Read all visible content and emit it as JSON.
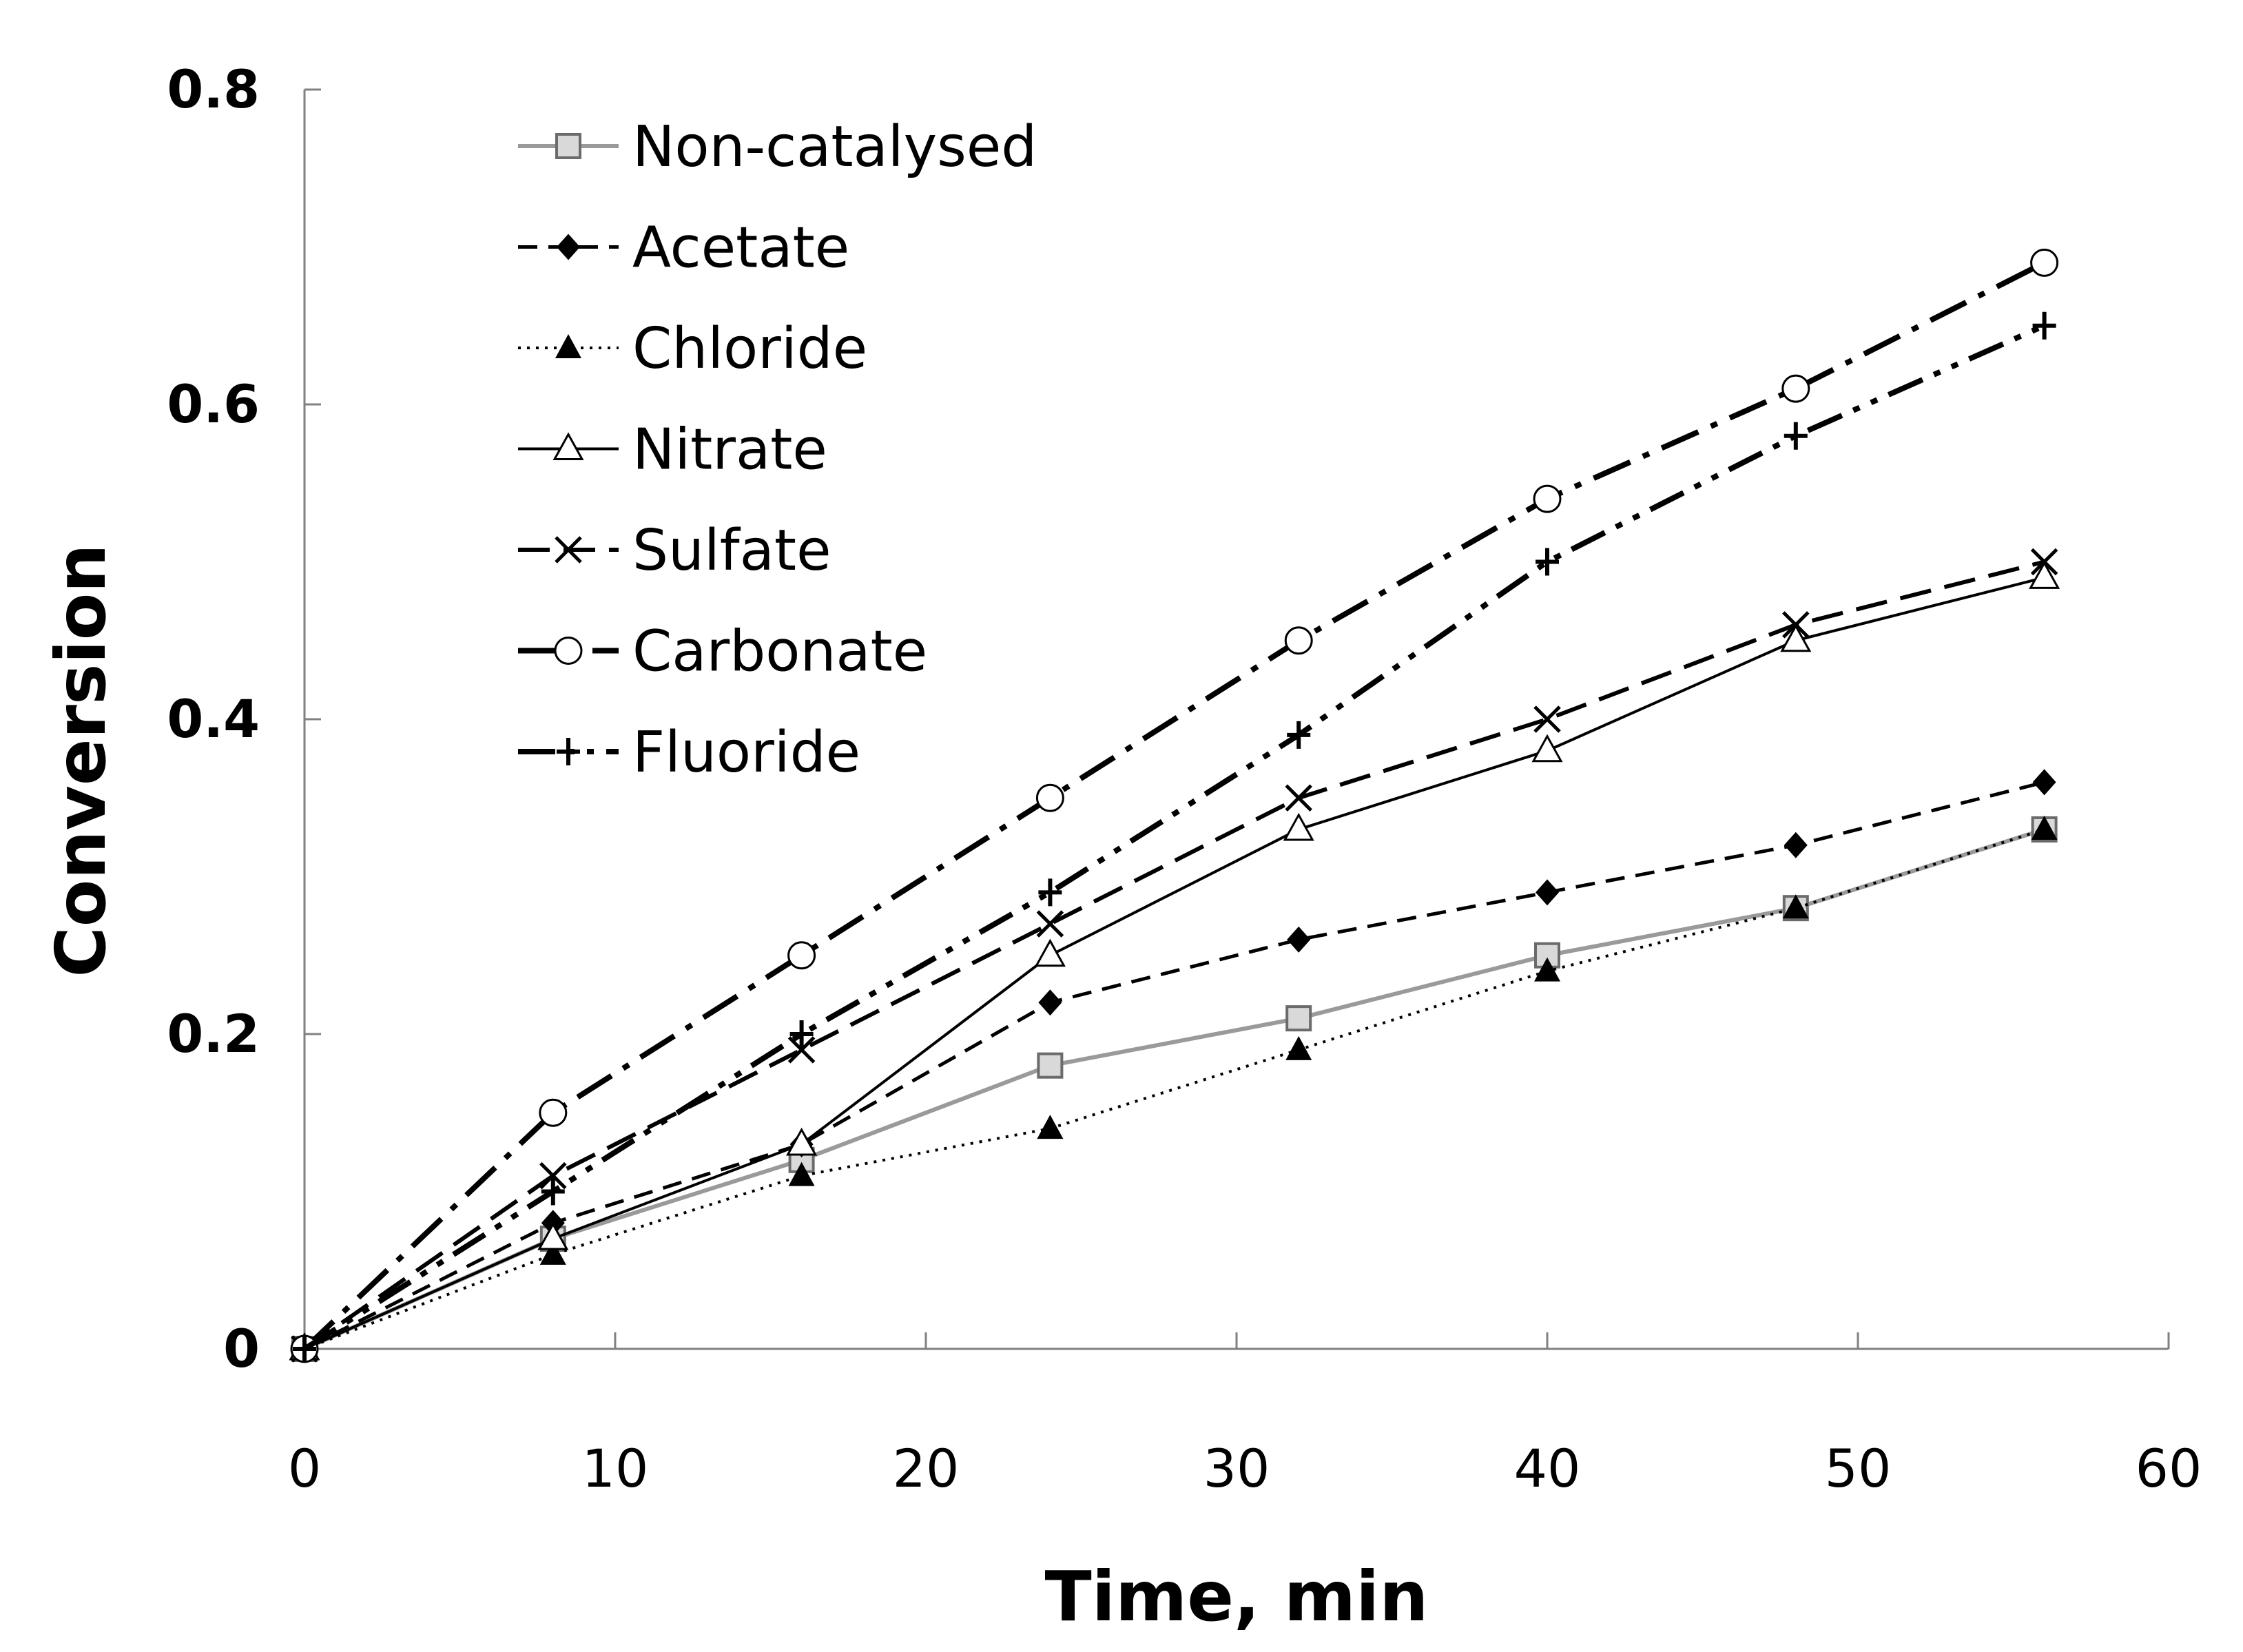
{
  "chart_data": {
    "type": "line",
    "xlabel": "Time, min",
    "ylabel": "Conversion",
    "xlim": [
      0,
      60
    ],
    "ylim": [
      0,
      0.8
    ],
    "xticks": [
      0,
      10,
      20,
      30,
      40,
      50,
      60
    ],
    "yticks": [
      0,
      0.2,
      0.4,
      0.6,
      0.8
    ],
    "ytick_labels": [
      "0",
      "0.2",
      "0.4",
      "0.6",
      "0.8"
    ],
    "grid": false,
    "legend_position": "top-left",
    "x": [
      0,
      8,
      16,
      24,
      32,
      40,
      48,
      56
    ],
    "series": [
      {
        "name": "Non-catalysed",
        "values": [
          0,
          0.07,
          0.12,
          0.18,
          0.21,
          0.25,
          0.28,
          0.33
        ],
        "marker": "square",
        "line": "solid-gray"
      },
      {
        "name": "Acetate",
        "values": [
          0,
          0.08,
          0.13,
          0.22,
          0.26,
          0.29,
          0.32,
          0.36
        ],
        "marker": "diamond",
        "line": "dashed"
      },
      {
        "name": "Chloride",
        "values": [
          0,
          0.06,
          0.11,
          0.14,
          0.19,
          0.24,
          0.28,
          0.33
        ],
        "marker": "triangle-filled",
        "line": "dotted"
      },
      {
        "name": "Nitrate",
        "values": [
          0,
          0.07,
          0.13,
          0.25,
          0.33,
          0.38,
          0.45,
          0.49
        ],
        "marker": "triangle-open",
        "line": "solid"
      },
      {
        "name": "Sulfate",
        "values": [
          0,
          0.11,
          0.19,
          0.27,
          0.35,
          0.4,
          0.46,
          0.5
        ],
        "marker": "x",
        "line": "long-dash"
      },
      {
        "name": "Carbonate",
        "values": [
          0,
          0.15,
          0.25,
          0.35,
          0.45,
          0.54,
          0.61,
          0.69
        ],
        "marker": "circle-open",
        "line": "dash-dot"
      },
      {
        "name": "Fluoride",
        "values": [
          0,
          0.1,
          0.2,
          0.29,
          0.39,
          0.5,
          0.58,
          0.65
        ],
        "marker": "plus",
        "line": "dash-dot-dot"
      }
    ]
  }
}
